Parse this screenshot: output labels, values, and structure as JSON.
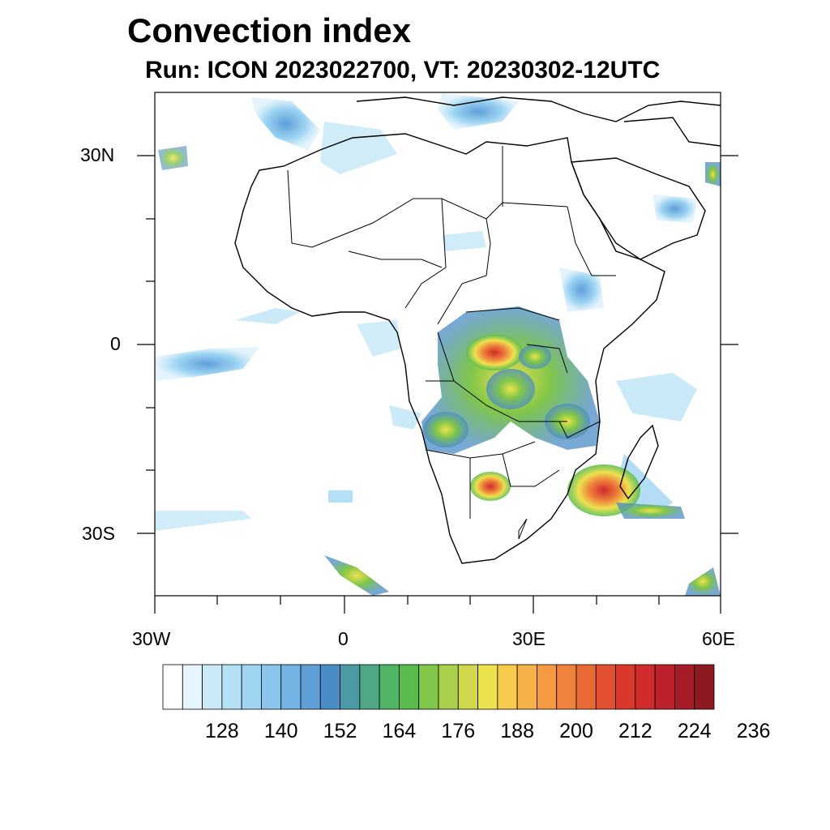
{
  "title": "Convection index",
  "subtitle": "Run: ICON 2023022700,  VT: 20230302-12UTC",
  "axes": {
    "lon_ticks": [
      "30W",
      "0",
      "30E",
      "60E"
    ],
    "lat_ticks": [
      "30N",
      "0",
      "30S"
    ]
  },
  "colorbar": {
    "labels": [
      "128",
      "140",
      "152",
      "164",
      "176",
      "188",
      "200",
      "212",
      "224",
      "236"
    ],
    "colors": [
      "#ffffff",
      "#e6f5fc",
      "#cbeaf8",
      "#b4e0f6",
      "#9fd5f3",
      "#8ac6ec",
      "#74b4e5",
      "#5e9fd8",
      "#4a8cc6",
      "#4b9aa6",
      "#4ea884",
      "#4fb565",
      "#58bc4d",
      "#80c649",
      "#a9cf4b",
      "#cfd84c",
      "#eee14e",
      "#f6cb4d",
      "#f5b248",
      "#f39a43",
      "#ef823c",
      "#ea6a35",
      "#e2502f",
      "#da382c",
      "#cf2a2c",
      "#bd212b",
      "#a51c26",
      "#8c1a20"
    ]
  }
}
